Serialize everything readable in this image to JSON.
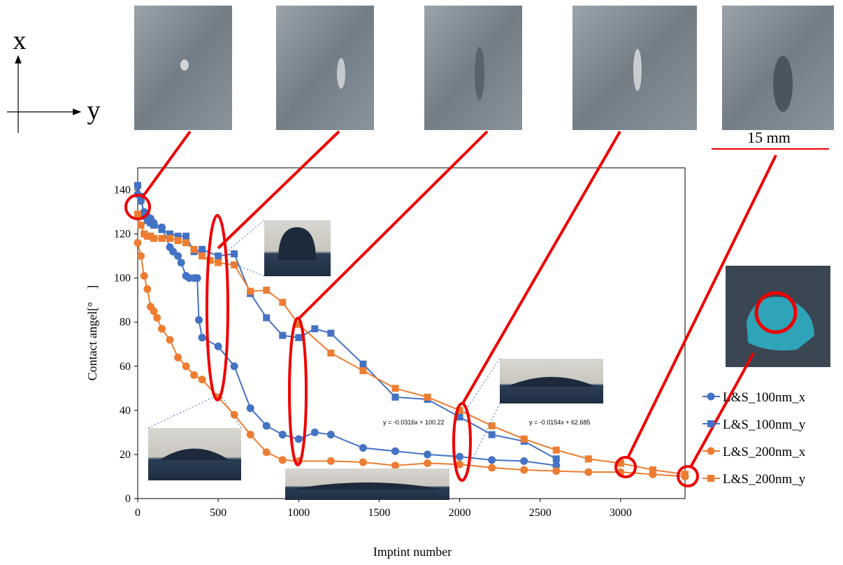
{
  "axes_diagram": {
    "x_label": "x",
    "y_label": "y"
  },
  "scale_bar": "15 mm",
  "chart_data": {
    "type": "line",
    "xlabel": "Imptint number",
    "ylabel": "Contact angel[°　]",
    "annotations": [
      "y = -0.0316x + 100.22",
      "y = -0.0154x + 62.685"
    ],
    "xlim": [
      0,
      3400
    ],
    "xticks": [
      0,
      500,
      1000,
      1500,
      2000,
      2500,
      3000
    ],
    "ylim": [
      0,
      150
    ],
    "yticks": [
      0,
      20,
      40,
      60,
      80,
      100,
      120,
      140
    ],
    "legend": "right",
    "series": [
      {
        "name": "L&S_100nm_x",
        "color": "#4472c4",
        "marker": "circle",
        "x": [
          0,
          20,
          40,
          60,
          80,
          100,
          150,
          200,
          220,
          250,
          270,
          300,
          320,
          350,
          370,
          380,
          400,
          500,
          600,
          700,
          800,
          900,
          1000,
          1100,
          1200,
          1400,
          1600,
          1800,
          2000,
          2200,
          2400,
          2600
        ],
        "values": [
          138,
          135,
          130,
          128,
          127,
          125,
          123,
          114,
          112,
          110,
          107,
          101,
          100,
          100,
          100,
          81,
          73,
          69,
          60,
          41,
          33,
          29,
          27,
          30,
          29,
          23,
          21.5,
          20,
          19,
          17.5,
          17,
          15
        ]
      },
      {
        "name": "L&S_100nm_y",
        "color": "#4472c4",
        "marker": "square",
        "x": [
          0,
          20,
          40,
          60,
          80,
          100,
          150,
          200,
          250,
          300,
          350,
          400,
          500,
          600,
          700,
          800,
          900,
          1000,
          1100,
          1200,
          1400,
          1600,
          1800,
          2000,
          2200,
          2400,
          2600
        ],
        "values": [
          142,
          137,
          128,
          126,
          125,
          124,
          122,
          120,
          119,
          119,
          112,
          113,
          110,
          111,
          93,
          82,
          74,
          73,
          77,
          75,
          61,
          46,
          45,
          37,
          29,
          26,
          18
        ]
      },
      {
        "name": "L&S_200nm_x",
        "color": "#ed7d31",
        "marker": "circle",
        "x": [
          0,
          20,
          40,
          60,
          80,
          100,
          120,
          150,
          200,
          250,
          300,
          350,
          400,
          500,
          600,
          700,
          800,
          900,
          1000,
          1200,
          1400,
          1600,
          1800,
          2000,
          2200,
          2400,
          2600,
          2800,
          3000,
          3200,
          3400
        ],
        "values": [
          116,
          110,
          101,
          95,
          87,
          85,
          82,
          77,
          72,
          64,
          60,
          56,
          54,
          46,
          38,
          29,
          21,
          17.5,
          17,
          17,
          16.5,
          15,
          16,
          15.5,
          14,
          13,
          12.5,
          12,
          12,
          11,
          10
        ]
      },
      {
        "name": "L&S_200nm_y",
        "color": "#ed7d31",
        "marker": "square",
        "x": [
          0,
          20,
          40,
          60,
          80,
          100,
          150,
          200,
          250,
          300,
          350,
          400,
          450,
          500,
          600,
          700,
          800,
          900,
          1000,
          1200,
          1400,
          1600,
          1800,
          2000,
          2200,
          2400,
          2600,
          2800,
          3000,
          3200,
          3400
        ],
        "values": [
          129,
          124,
          120,
          119,
          119,
          118,
          118,
          118,
          117,
          116,
          113,
          110,
          108,
          107,
          106,
          94,
          94.5,
          89,
          79,
          66,
          58,
          50,
          46,
          40,
          33,
          27,
          22,
          18,
          16,
          13,
          11
        ]
      }
    ]
  }
}
